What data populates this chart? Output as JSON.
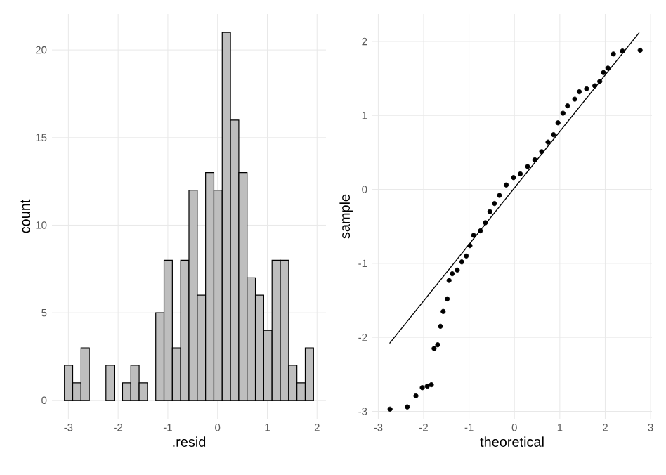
{
  "chart_data": [
    {
      "type": "histogram",
      "xlabel": ".resid",
      "ylabel": "count",
      "color": "#bebebe",
      "grid": true,
      "bins": [
        -3.08,
        -2.913,
        -2.746,
        -2.579,
        -2.412,
        -2.245,
        -2.078,
        -1.911,
        -1.744,
        -1.577,
        -1.41,
        -1.243,
        -1.076,
        -0.909,
        -0.742,
        -0.575,
        -0.408,
        -0.241,
        -0.074,
        0.093,
        0.26,
        0.427,
        0.594,
        0.761,
        0.928,
        1.095,
        1.262,
        1.429,
        1.596,
        1.763,
        1.93
      ],
      "values": [
        2,
        1,
        3,
        0,
        0,
        2,
        0,
        1,
        2,
        1,
        0,
        5,
        8,
        3,
        8,
        12,
        6,
        13,
        12,
        21,
        16,
        13,
        7,
        6,
        4,
        8,
        8,
        2,
        1,
        3
      ],
      "xlim": [
        -3.33,
        2.18
      ],
      "ylim": [
        -1.05,
        22.05
      ],
      "xticks": [
        -3,
        -2,
        -1,
        0,
        1,
        2
      ],
      "yticks": [
        0,
        5,
        10,
        15,
        20
      ]
    },
    {
      "type": "scatter",
      "xlabel": "theoretical",
      "ylabel": "sample",
      "grid": true,
      "series": [
        {
          "type": "scatter",
          "marker": "circle",
          "color": "#000000",
          "x": [
            -2.74,
            -2.36,
            -2.17,
            -2.03,
            -1.92,
            -1.83,
            -1.77,
            -1.69,
            -1.63,
            -1.57,
            -1.48,
            -1.44,
            -1.37,
            -1.26,
            -1.16,
            -1.06,
            -0.98,
            -0.9,
            -0.75,
            -0.64,
            -0.54,
            -0.44,
            -0.33,
            -0.18,
            -0.02,
            0.13,
            0.29,
            0.45,
            0.6,
            0.74,
            0.86,
            0.96,
            1.07,
            1.17,
            1.33,
            1.43,
            1.59,
            1.77,
            1.88,
            1.96,
            2.06,
            2.18,
            2.38,
            2.77
          ],
          "values": [
            -2.97,
            -2.94,
            -2.79,
            -2.68,
            -2.66,
            -2.64,
            -2.15,
            -2.1,
            -1.85,
            -1.65,
            -1.48,
            -1.23,
            -1.14,
            -1.09,
            -0.98,
            -0.9,
            -0.76,
            -0.62,
            -0.56,
            -0.45,
            -0.3,
            -0.19,
            -0.08,
            0.06,
            0.16,
            0.21,
            0.31,
            0.4,
            0.51,
            0.64,
            0.74,
            0.9,
            1.03,
            1.13,
            1.22,
            1.32,
            1.36,
            1.4,
            1.46,
            1.58,
            1.64,
            1.83,
            1.87,
            1.88
          ]
        },
        {
          "type": "line",
          "color": "#000000",
          "x": [
            -2.75,
            2.75
          ],
          "values": [
            -2.08,
            2.12
          ]
        }
      ],
      "xlim": [
        -3.13,
        3.03
      ],
      "ylim": [
        -3.1,
        2.37
      ],
      "xticks": [
        -3,
        -2,
        -1,
        0,
        1,
        2,
        3
      ],
      "yticks": [
        -3,
        -2,
        -1,
        0,
        1,
        2
      ]
    }
  ]
}
